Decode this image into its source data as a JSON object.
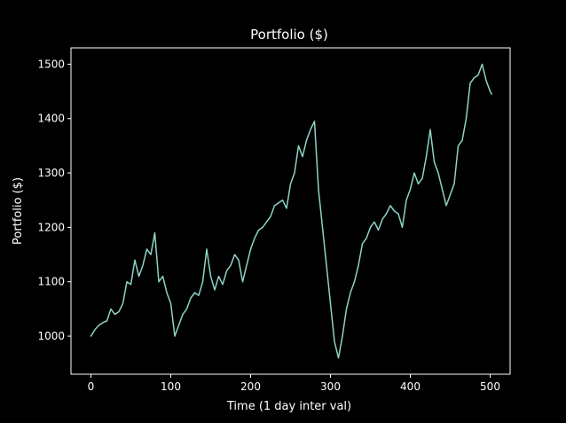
{
  "chart_data": {
    "type": "line",
    "title": "Portfolio ($)",
    "xlabel": "Time (1 day inter val)",
    "ylabel": "Portfolio ($)",
    "xlim": [
      -25,
      525
    ],
    "ylim": [
      930,
      1530
    ],
    "xticks": [
      0,
      100,
      200,
      300,
      400,
      500
    ],
    "yticks": [
      1000,
      1100,
      1200,
      1300,
      1400,
      1500
    ],
    "grid": false,
    "colors": {
      "background": "#000000",
      "axes": "#ffffff",
      "line": "#8dd3c7"
    },
    "series": [
      {
        "x": [
          0,
          5,
          10,
          15,
          20,
          25,
          30,
          35,
          40,
          45,
          50,
          55,
          60,
          65,
          70,
          75,
          80,
          85,
          90,
          95,
          100,
          105,
          110,
          115,
          120,
          125,
          130,
          135,
          140,
          145,
          150,
          155,
          160,
          165,
          170,
          175,
          180,
          185,
          190,
          195,
          200,
          205,
          210,
          215,
          220,
          225,
          230,
          235,
          240,
          245,
          250,
          255,
          260,
          265,
          270,
          275,
          280,
          285,
          290,
          295,
          300,
          305,
          310,
          315,
          320,
          325,
          330,
          335,
          340,
          345,
          350,
          355,
          360,
          365,
          370,
          375,
          380,
          385,
          390,
          395,
          400,
          405,
          410,
          415,
          420,
          425,
          430,
          435,
          440,
          445,
          450,
          455,
          460,
          465,
          470,
          475,
          480,
          485,
          490,
          495,
          500,
          502
        ],
        "values": [
          1000,
          1012,
          1020,
          1025,
          1028,
          1050,
          1040,
          1045,
          1060,
          1100,
          1095,
          1140,
          1110,
          1130,
          1160,
          1150,
          1190,
          1100,
          1110,
          1080,
          1060,
          1000,
          1020,
          1040,
          1050,
          1070,
          1080,
          1075,
          1100,
          1160,
          1110,
          1085,
          1110,
          1095,
          1120,
          1130,
          1150,
          1140,
          1100,
          1130,
          1160,
          1180,
          1195,
          1200,
          1210,
          1220,
          1240,
          1245,
          1250,
          1235,
          1280,
          1300,
          1350,
          1330,
          1360,
          1380,
          1395,
          1270,
          1200,
          1130,
          1060,
          990,
          960,
          1000,
          1050,
          1080,
          1100,
          1130,
          1170,
          1180,
          1200,
          1210,
          1195,
          1215,
          1225,
          1240,
          1230,
          1225,
          1200,
          1250,
          1270,
          1300,
          1280,
          1290,
          1330,
          1380,
          1320,
          1300,
          1270,
          1240,
          1260,
          1280,
          1350,
          1360,
          1400,
          1465,
          1475,
          1480,
          1500,
          1470,
          1450,
          1445
        ]
      }
    ]
  }
}
